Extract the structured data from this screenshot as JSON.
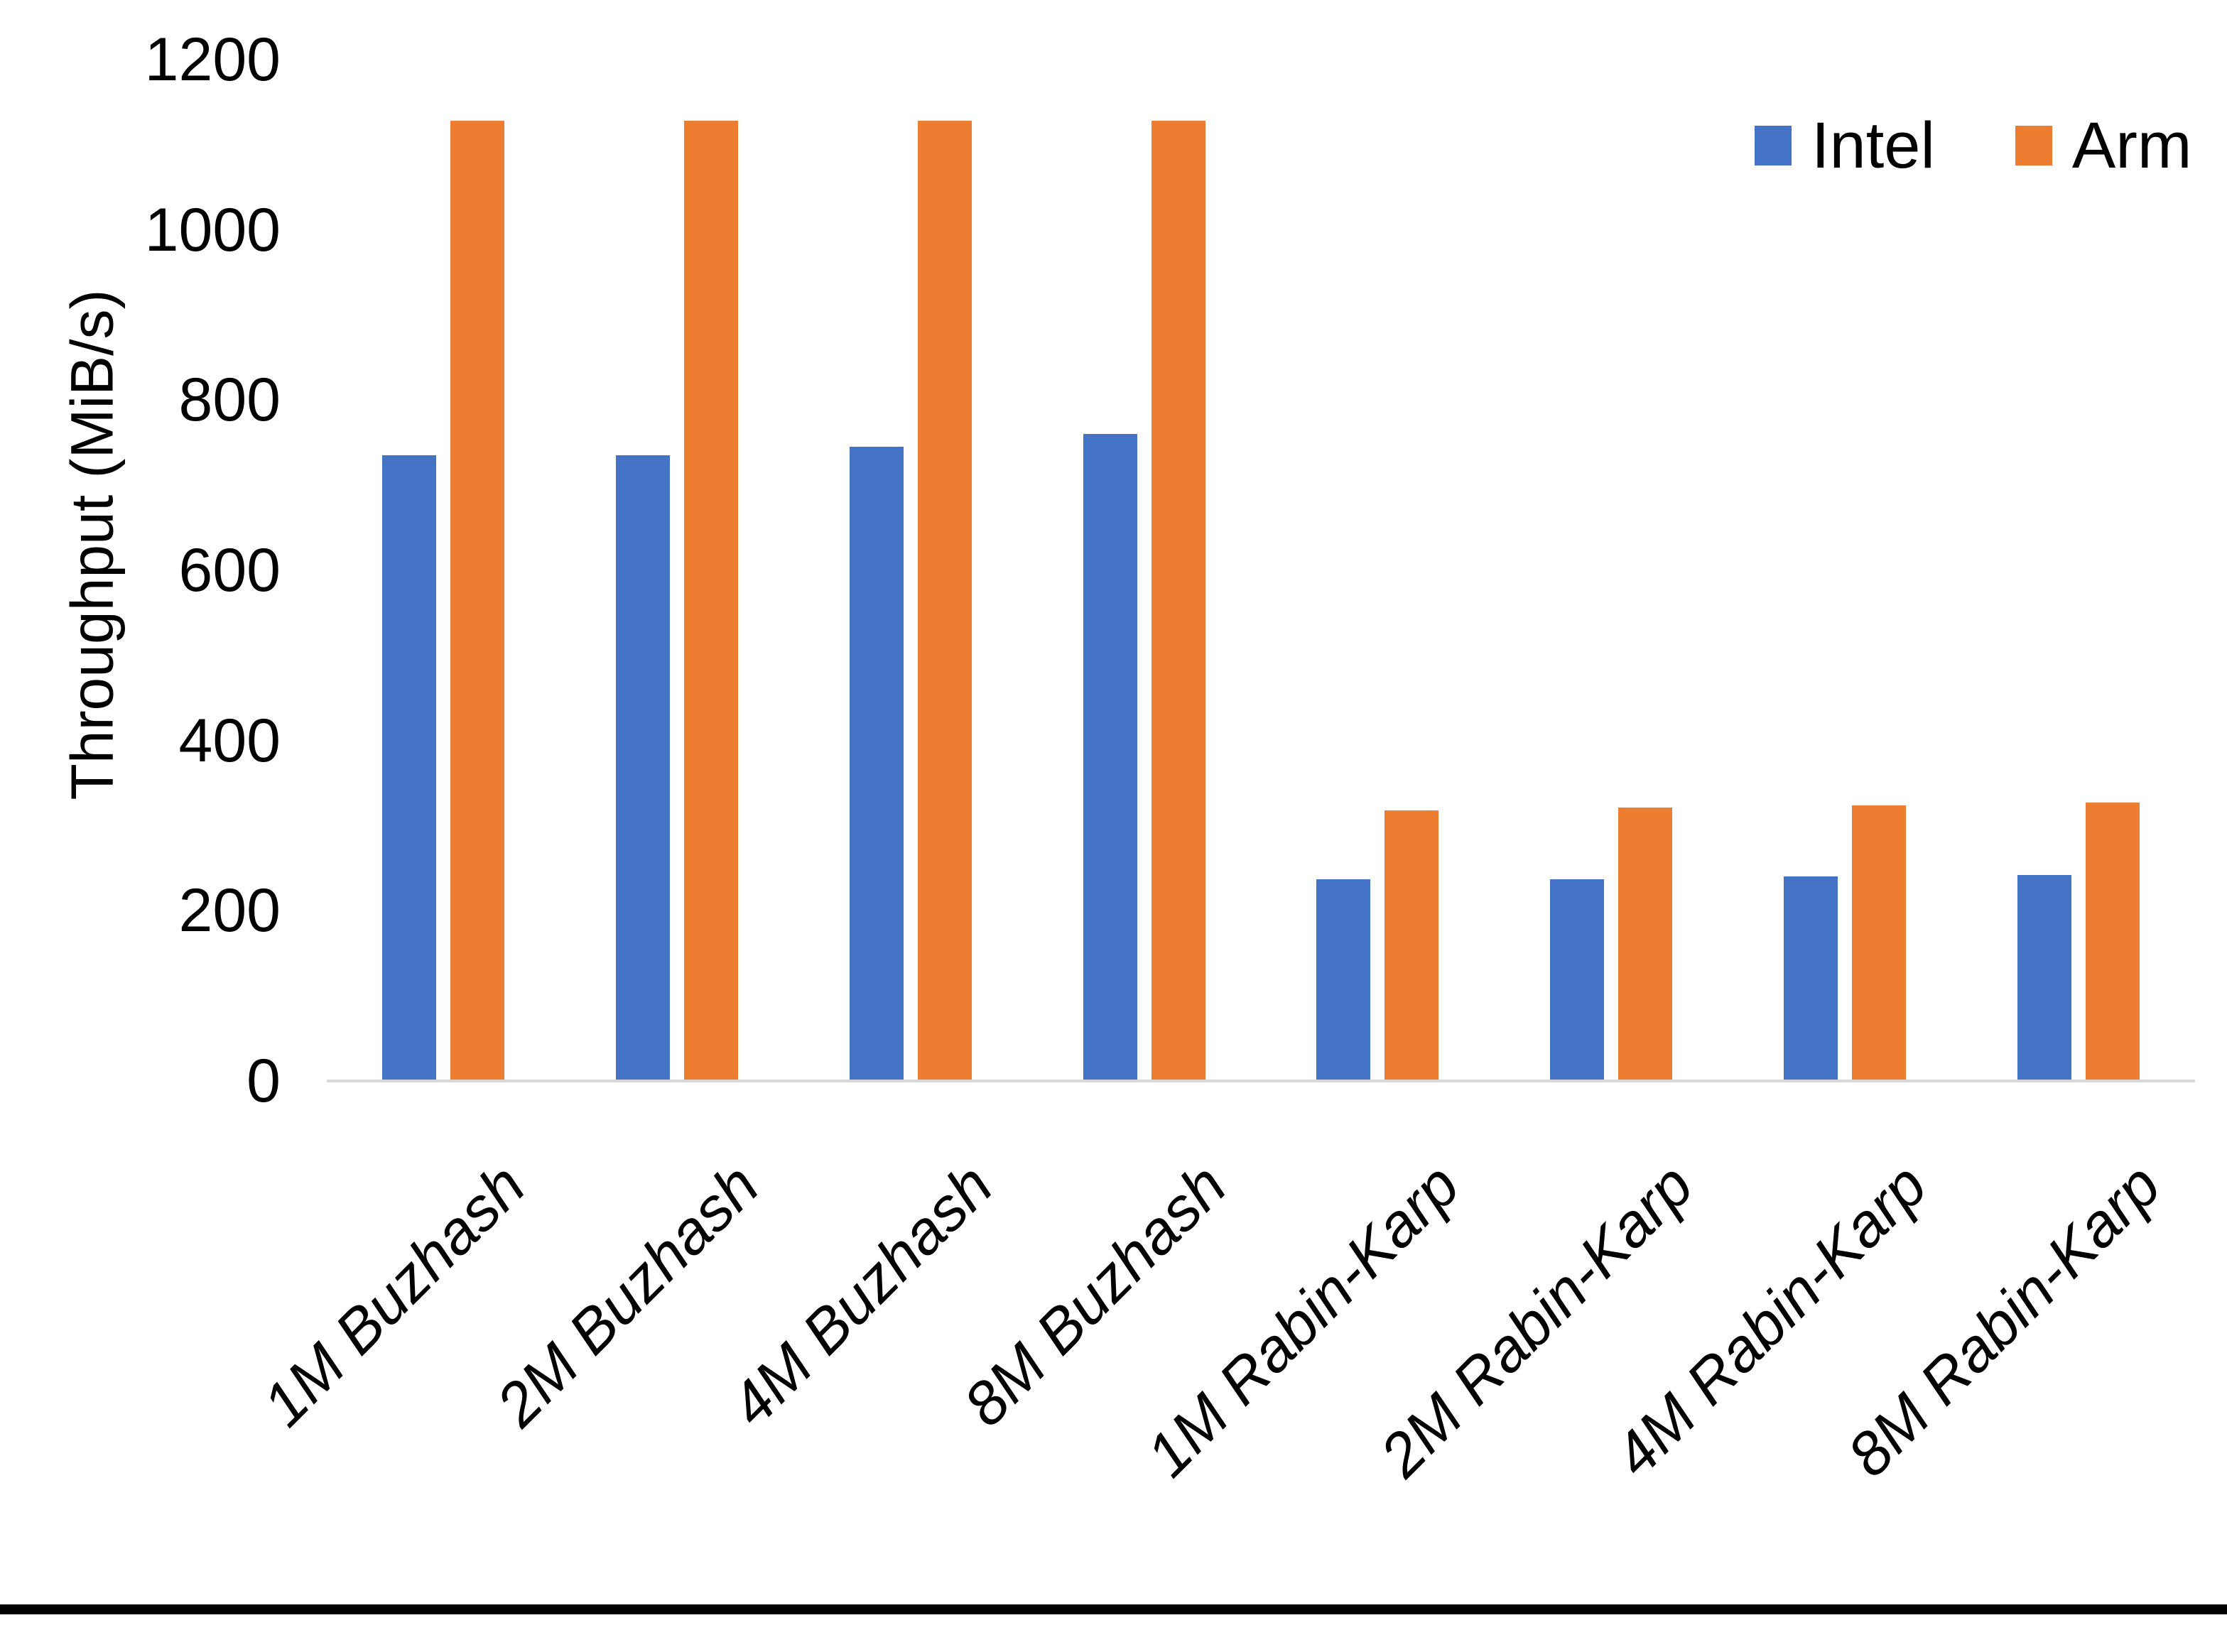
{
  "figure": {
    "background": "#FFFFFF",
    "axis_line_color": "#D9D9D9",
    "bottom_border_color": "#000000",
    "text_color": "#000000"
  },
  "legend": {
    "position": "top-right",
    "entries": [
      {
        "label": "Intel",
        "color": "#4472C4"
      },
      {
        "label": "Arm",
        "color": "#ED7D31"
      }
    ]
  },
  "chart_data": {
    "type": "bar",
    "title": "",
    "xlabel": "",
    "ylabel": "Throughput (MiB/s)",
    "ylim": [
      0,
      1200
    ],
    "yticks": [
      0,
      200,
      400,
      600,
      800,
      1000,
      1200
    ],
    "grid": false,
    "legend_position": "top-right",
    "categories": [
      "1M Buzhash",
      "2M Buzhash",
      "4M Buzhash",
      "8M Buzhash",
      "1M Rabin-Karp",
      "2M Rabin-Karp",
      "4M Rabin-Karp",
      "8M Rabin-Karp"
    ],
    "series": [
      {
        "name": "Intel",
        "color": "#4472C4",
        "values": [
          735,
          735,
          745,
          760,
          237,
          237,
          240,
          242
        ]
      },
      {
        "name": "Arm",
        "color": "#ED7D31",
        "values": [
          1128,
          1128,
          1128,
          1128,
          318,
          321,
          324,
          327
        ]
      }
    ]
  }
}
